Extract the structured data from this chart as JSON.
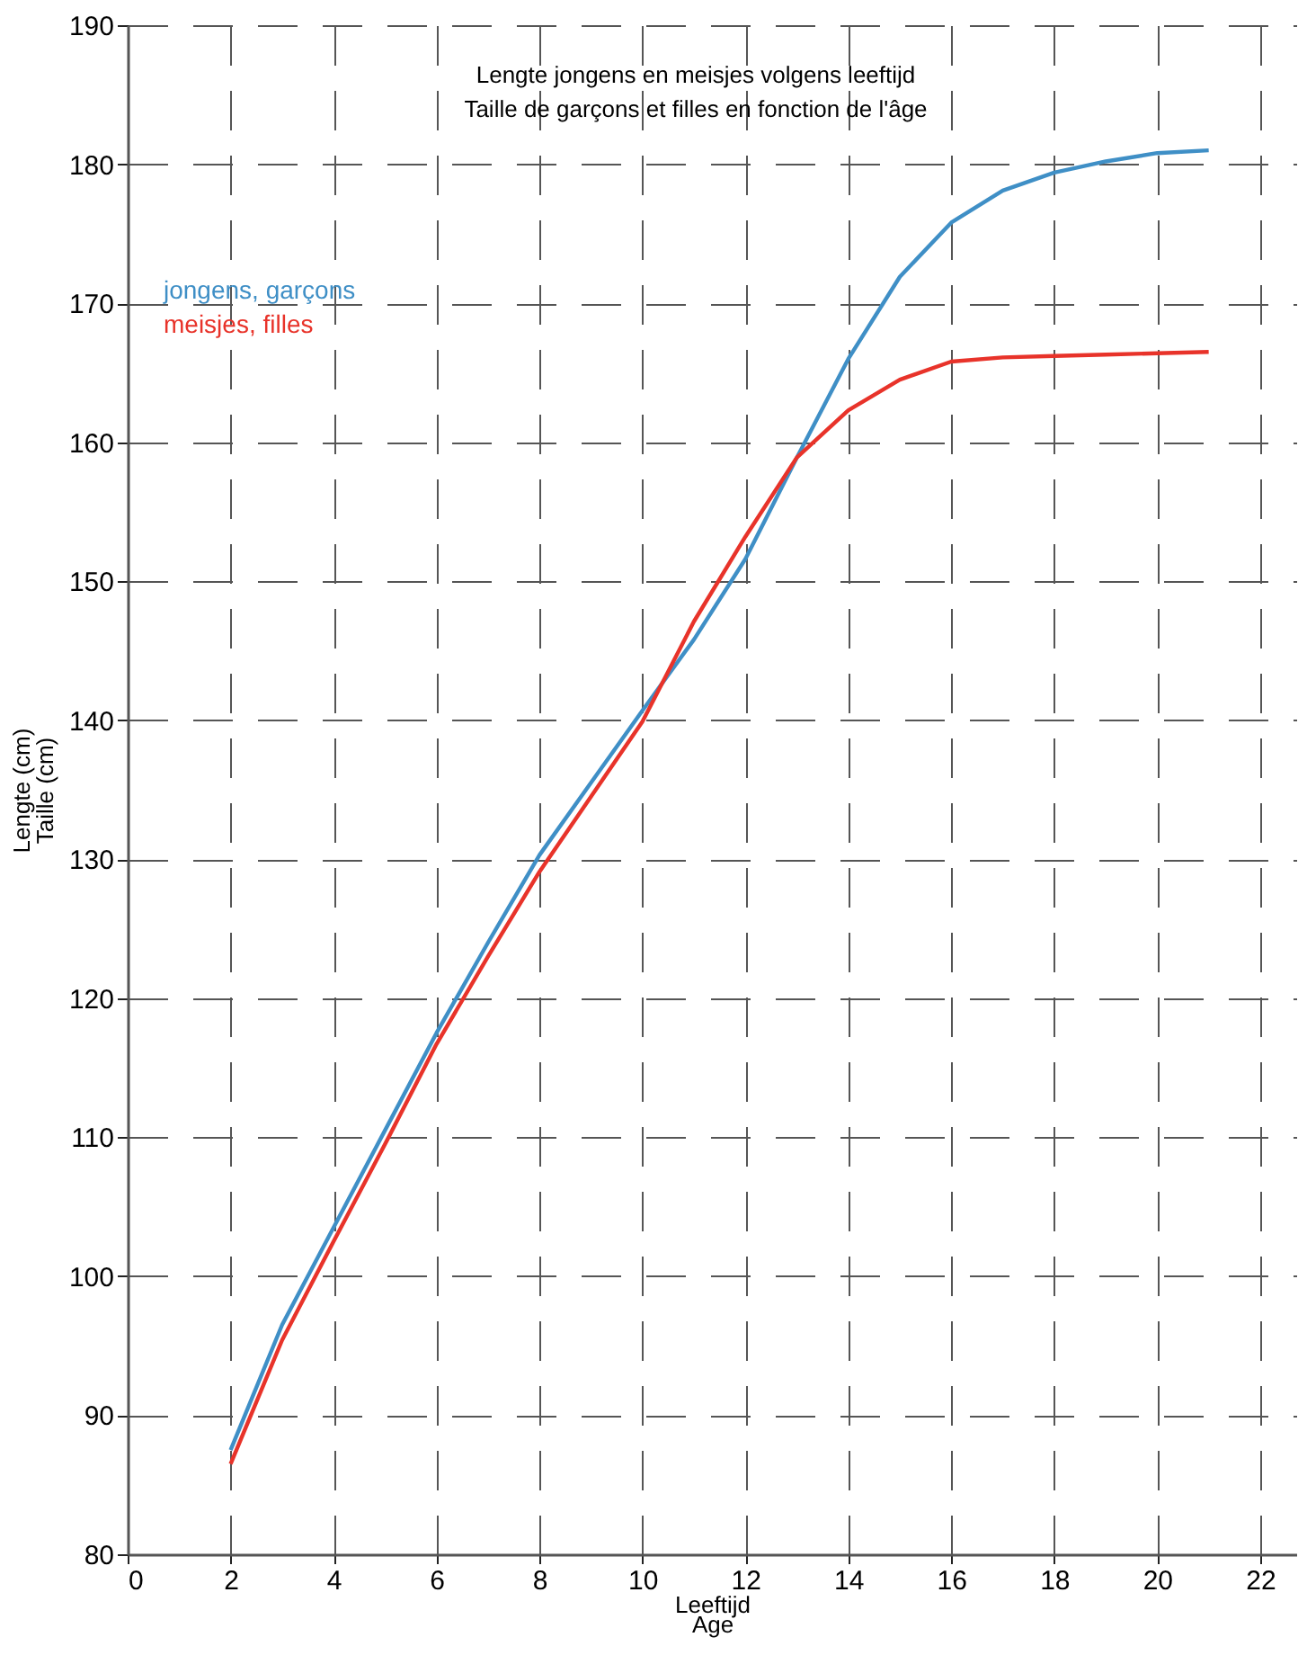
{
  "chart_data": {
    "type": "line",
    "title": "Lengte jongens en meisjes volgens leeftijd",
    "subtitle": "Taille de garçons et filles en fonction de l'âge",
    "xlabel": "Leeftijd\nAge",
    "ylabel": "Lengte (cm)\nTaille (cm)",
    "x": [
      2,
      3,
      4,
      5,
      6,
      7,
      8,
      9,
      10,
      11,
      12,
      13,
      14,
      15,
      16,
      17,
      18,
      19,
      20,
      21
    ],
    "series": [
      {
        "name": "jongens, garçons",
        "color": "#3f8fc6",
        "values": [
          87.5,
          96.5,
          103.5,
          110.5,
          117.5,
          124,
          130.3,
          135.5,
          140.7,
          145.8,
          151.6,
          158.9,
          166.0,
          171.9,
          175.8,
          178.1,
          179.4,
          180.2,
          180.8,
          181.0
        ]
      },
      {
        "name": "meisjes, filles",
        "color": "#e8332a",
        "values": [
          86.5,
          95.4,
          102.5,
          109.5,
          116.7,
          123,
          129.1,
          134.5,
          139.9,
          147.1,
          153.2,
          158.9,
          162.3,
          164.5,
          165.8,
          166.1,
          166.2,
          166.3,
          166.4,
          166.5
        ]
      }
    ],
    "xlim": [
      0,
      22.7
    ],
    "ylim": [
      80,
      190
    ],
    "xticks": [
      0,
      2,
      4,
      6,
      8,
      10,
      12,
      14,
      16,
      18,
      20,
      22
    ],
    "yticks": [
      80,
      90,
      100,
      110,
      120,
      130,
      140,
      150,
      160,
      170,
      180,
      190
    ],
    "grid": true,
    "legend": "top left",
    "marker": "none",
    "line_style": "solid"
  }
}
